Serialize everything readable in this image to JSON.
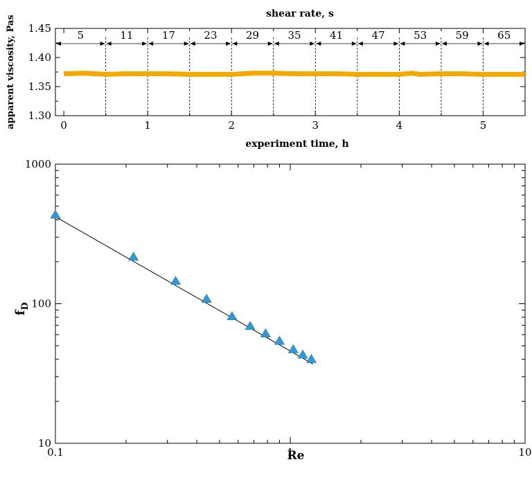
{
  "chart_data": [
    {
      "type": "line",
      "title": "shear rate, s",
      "xlabel": "experiment time, h",
      "ylabel": "apparent viscosity, Pas",
      "xlim": [
        -0.1,
        5.5
      ],
      "ylim": [
        1.3,
        1.45
      ],
      "x_ticks": [
        "0",
        "1",
        "2",
        "3",
        "4",
        "5"
      ],
      "y_ticks": [
        "1.30",
        "1.35",
        "1.40",
        "1.45"
      ],
      "series_color": "#f5a800",
      "x": [
        0,
        0.25,
        0.5,
        0.75,
        1.0,
        1.25,
        1.5,
        1.75,
        2.0,
        2.25,
        2.5,
        2.75,
        3.0,
        3.25,
        3.5,
        3.75,
        4.0,
        4.15,
        4.25,
        4.5,
        4.75,
        5.0,
        5.25,
        5.5
      ],
      "y": [
        1.372,
        1.373,
        1.371,
        1.372,
        1.372,
        1.372,
        1.371,
        1.371,
        1.371,
        1.373,
        1.373,
        1.372,
        1.372,
        1.372,
        1.371,
        1.371,
        1.371,
        1.373,
        1.371,
        1.372,
        1.372,
        1.371,
        1.371,
        1.371
      ],
      "interval_boundaries": [
        0.5,
        1.0,
        1.5,
        2.0,
        2.5,
        3.0,
        3.5,
        4.0,
        4.5,
        5.0
      ],
      "shear_rates": [
        "5",
        "11",
        "17",
        "23",
        "29",
        "35",
        "41",
        "47",
        "53",
        "59",
        "65"
      ],
      "grid": false
    },
    {
      "type": "scatter",
      "xlabel": "Re",
      "ylabel": "f",
      "ylabel_sub": "D",
      "xscale": "log",
      "yscale": "log",
      "xlim": [
        0.1,
        10
      ],
      "ylim": [
        10,
        1000
      ],
      "x_ticks": [
        "0.1",
        "1",
        "10"
      ],
      "y_ticks": [
        "10",
        "100",
        "1000"
      ],
      "marker": "triangle",
      "marker_color": "#3399d6",
      "points": {
        "x": [
          0.1,
          0.215,
          0.325,
          0.44,
          0.565,
          0.675,
          0.785,
          0.9,
          1.03,
          1.13,
          1.23
        ],
        "y": [
          433,
          216,
          145,
          108,
          81,
          69,
          61,
          54,
          47,
          43,
          40
        ]
      },
      "fit_line": {
        "x": [
          0.1,
          1.25
        ],
        "y": [
          420,
          37
        ]
      },
      "grid": false
    }
  ]
}
